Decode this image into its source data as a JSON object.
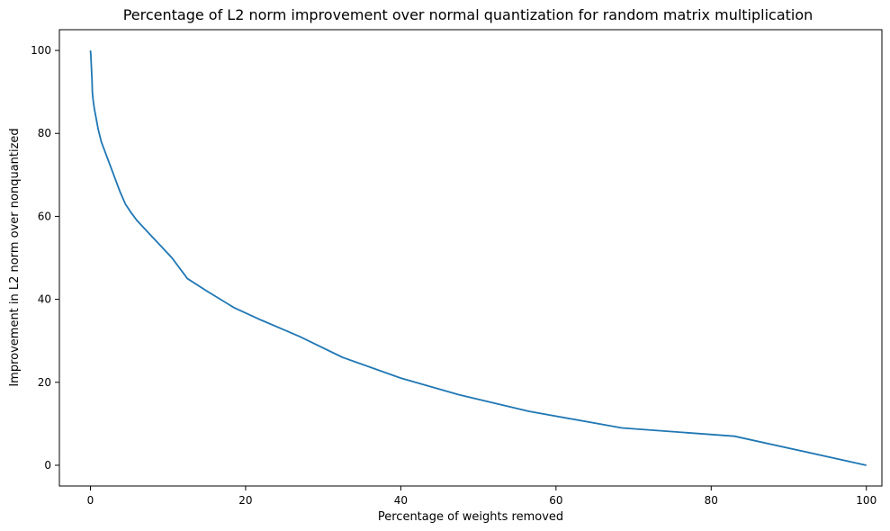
{
  "chart_data": {
    "type": "line",
    "title": "Percentage of L2 norm improvement over normal quantization for random matrix multiplication",
    "xlabel": "Percentage of weights removed",
    "ylabel": "Improvement in L2 norm over nonquantized",
    "xlim": [
      -4,
      102
    ],
    "ylim": [
      -5,
      105
    ],
    "x_ticks": [
      0,
      20,
      40,
      60,
      80,
      100
    ],
    "x_tick_labels": [
      "0",
      "20",
      "40",
      "60",
      "80",
      "100"
    ],
    "y_ticks": [
      0,
      20,
      40,
      60,
      80,
      100
    ],
    "y_tick_labels": [
      "0",
      "20",
      "40",
      "60",
      "80",
      "100"
    ],
    "grid": false,
    "series": [
      {
        "color": "#1f77b4",
        "x": [
          0,
          0.05,
          0.1,
          0.15,
          0.2,
          0.25,
          0.3,
          0.35,
          0.5,
          0.8,
          1.0,
          1.4,
          1.8,
          2.2,
          2.6,
          3.2,
          3.8,
          4.5,
          5.2,
          6.0,
          7.0,
          8.0,
          9.0,
          10.5,
          12.5,
          15.0,
          18.5,
          22.0,
          24.5,
          27.0,
          32.5,
          40.0,
          47.5,
          56.5,
          68.5,
          83.0,
          100.0
        ],
        "y": [
          100,
          99,
          97,
          95,
          93,
          90,
          89,
          88,
          86,
          83,
          81,
          78,
          76,
          74,
          72,
          69,
          66,
          63,
          61,
          59,
          57,
          55,
          53,
          50,
          45,
          42,
          38,
          35,
          33,
          31,
          26,
          21,
          17,
          13,
          9,
          7,
          0
        ]
      }
    ]
  }
}
